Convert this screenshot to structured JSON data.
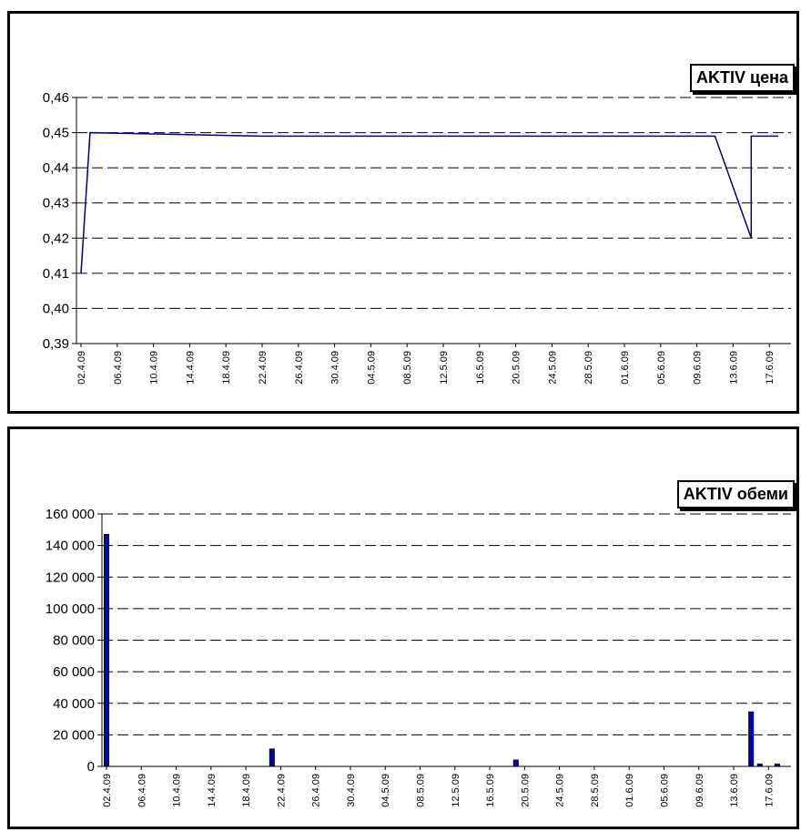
{
  "chart_data": [
    {
      "type": "line",
      "title": "AKTIV цена",
      "x_tick_labels": [
        "02.4.09",
        "06.4.09",
        "10.4.09",
        "14.4.09",
        "18.4.09",
        "22.4.09",
        "26.4.09",
        "30.4.09",
        "04.5.09",
        "08.5.09",
        "12.5.09",
        "16.5.09",
        "20.5.09",
        "24.5.09",
        "28.5.09",
        "01.6.09",
        "05.6.09",
        "09.6.09",
        "13.6.09",
        "17.6.09"
      ],
      "y_tick_labels": [
        "0,39",
        "0,40",
        "0,41",
        "0,42",
        "0,43",
        "0,44",
        "0,45",
        "0,46"
      ],
      "ylim": [
        0.39,
        0.46
      ],
      "grid": true,
      "series": [
        {
          "color": "#000080",
          "points": [
            {
              "x": "02.4.09",
              "y": 0.41
            },
            {
              "x": "03.4.09",
              "y": 0.45
            },
            {
              "x": "22.4.09",
              "y": 0.449
            },
            {
              "x": "11.6.09",
              "y": 0.449
            },
            {
              "x": "15.6.09",
              "y": 0.42
            },
            {
              "x": "15.6.09",
              "y": 0.449
            },
            {
              "x": "18.6.09",
              "y": 0.449
            }
          ]
        }
      ]
    },
    {
      "type": "bar",
      "title": "AKTIV обеми",
      "x_tick_labels": [
        "02.4.09",
        "06.4.09",
        "10.4.09",
        "14.4.09",
        "18.4.09",
        "22.4.09",
        "26.4.09",
        "30.4.09",
        "04.5.09",
        "08.5.09",
        "12.5.09",
        "16.5.09",
        "20.5.09",
        "24.5.09",
        "28.5.09",
        "01.6.09",
        "05.6.09",
        "09.6.09",
        "13.6.09",
        "17.6.09"
      ],
      "y_tick_labels": [
        "0",
        "20 000",
        "40 000",
        "60 000",
        "80 000",
        "100 000",
        "120 000",
        "140 000",
        "160 000"
      ],
      "ylim": [
        0,
        160000
      ],
      "grid": true,
      "bar_color": "#0000cc",
      "bars": [
        {
          "x": "02.4.09",
          "value": 147000
        },
        {
          "x": "21.4.09",
          "value": 11000
        },
        {
          "x": "19.5.09",
          "value": 4000
        },
        {
          "x": "15.6.09",
          "value": 34500
        },
        {
          "x": "16.6.09",
          "value": 1500
        },
        {
          "x": "18.6.09",
          "value": 1500
        }
      ]
    }
  ]
}
